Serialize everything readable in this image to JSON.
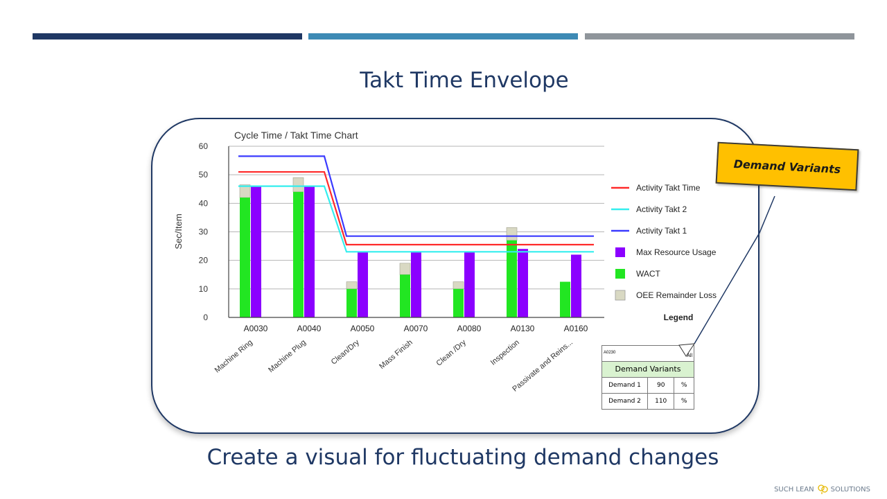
{
  "slide": {
    "title": "Takt Time Envelope",
    "subtitle": "Create a visual for fluctuating demand changes",
    "logo_left": "SUCH LEAN",
    "logo_right": "SOLUTIONS",
    "callout": "Demand Variants",
    "colors": {
      "navy": "#1f3864",
      "blue": "#3d8ab5",
      "gray": "#8f959b",
      "callout": "#ffc000"
    }
  },
  "demand_table": {
    "code": "A0230",
    "all": "All",
    "header": "Demand Variants",
    "rows": [
      {
        "label": "Demand 1",
        "value": "90",
        "unit": "%"
      },
      {
        "label": "Demand 2",
        "value": "110",
        "unit": "%"
      }
    ]
  },
  "chart_data": {
    "type": "bar",
    "title": "Cycle Time / Takt Time Chart",
    "ylabel": "Sec/Item",
    "ylim": [
      0,
      60
    ],
    "yticks": [
      0,
      10,
      20,
      30,
      40,
      50,
      60
    ],
    "grid": true,
    "legend_title": "Legend",
    "legend_position": "right",
    "categories": [
      "A0030",
      "A0040",
      "A0050",
      "A0070",
      "A0080",
      "A0130",
      "A0160"
    ],
    "category_names": [
      "Machine Ring",
      "Machine Plug",
      "Clean/Dry",
      "Mass Finish",
      "Clean /Dry",
      "Inspection",
      "Passivate and Reins..."
    ],
    "series": [
      {
        "name": "WACT",
        "type": "bar",
        "stack": "left",
        "color": "#22e622",
        "values": [
          42,
          44,
          10,
          15,
          10,
          27,
          12.5
        ]
      },
      {
        "name": "OEE Remainder Loss",
        "type": "bar",
        "stack": "left",
        "color": "#d9d9c3",
        "values": [
          4.5,
          5,
          2.5,
          4,
          2.5,
          4.5,
          0
        ]
      },
      {
        "name": "Max Resource Usage",
        "type": "bar",
        "stack": "right",
        "color": "#8b00ff",
        "values": [
          46,
          46,
          23,
          23,
          23,
          24,
          22
        ]
      },
      {
        "name": "Activity Takt Time",
        "type": "line",
        "color": "#ff2a2a",
        "values": [
          51,
          51,
          25.5,
          25.5,
          25.5,
          25.5,
          25.5
        ]
      },
      {
        "name": "Activity Takt 2",
        "type": "line",
        "color": "#33eeee",
        "values": [
          46,
          46,
          23,
          23,
          23,
          23,
          23
        ]
      },
      {
        "name": "Activity Takt 1",
        "type": "line",
        "color": "#3a3aff",
        "values": [
          56.5,
          56.5,
          28.5,
          28.5,
          28.5,
          28.5,
          28.5
        ]
      }
    ],
    "legend_order": [
      "Activity Takt Time",
      "Activity Takt 2",
      "Activity Takt 1",
      "Max Resource Usage",
      "WACT",
      "OEE Remainder Loss"
    ]
  }
}
